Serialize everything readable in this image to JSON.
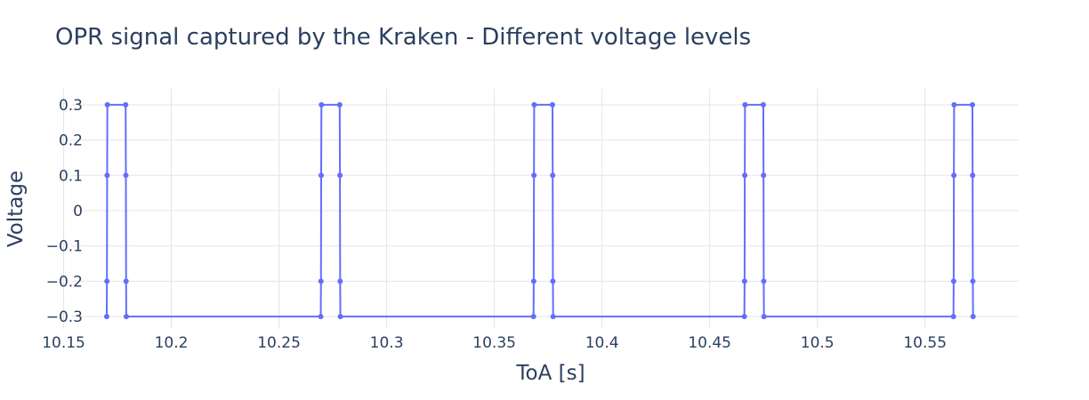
{
  "colors": {
    "series": "#636efa",
    "grid": "#e5e5e5",
    "text": "#2a3f5f"
  },
  "chart_data": {
    "type": "line",
    "mode": "lines+markers",
    "title": "OPR signal captured by the Kraken - Different voltage levels",
    "xlabel": "ToA [s]",
    "ylabel": "Voltage",
    "xlim": [
      10.1535,
      10.5935
    ],
    "ylim": [
      -0.335,
      0.345
    ],
    "grid": true,
    "x_ticks": [
      {
        "value": 10.15,
        "label": "10.15"
      },
      {
        "value": 10.2,
        "label": "10.2"
      },
      {
        "value": 10.25,
        "label": "10.25"
      },
      {
        "value": 10.3,
        "label": "10.3"
      },
      {
        "value": 10.35,
        "label": "10.35"
      },
      {
        "value": 10.4,
        "label": "10.4"
      },
      {
        "value": 10.45,
        "label": "10.45"
      },
      {
        "value": 10.5,
        "label": "10.5"
      },
      {
        "value": 10.55,
        "label": "10.55"
      }
    ],
    "y_ticks": [
      {
        "value": 0.3,
        "label": "0.3"
      },
      {
        "value": 0.2,
        "label": "0.2"
      },
      {
        "value": 0.1,
        "label": "0.1"
      },
      {
        "value": 0,
        "label": "0"
      },
      {
        "value": -0.1,
        "label": "−0.1"
      },
      {
        "value": -0.2,
        "label": "−0.2"
      },
      {
        "value": -0.3,
        "label": "−0.3"
      }
    ],
    "series": [
      {
        "points": [
          [
            10.17,
            -0.3
          ],
          [
            10.1701,
            -0.2
          ],
          [
            10.1702,
            0.1
          ],
          [
            10.1703,
            0.3
          ],
          [
            10.1788,
            0.3
          ],
          [
            10.1789,
            0.1
          ],
          [
            10.179,
            -0.2
          ],
          [
            10.1791,
            -0.3
          ],
          [
            10.2694,
            -0.3
          ],
          [
            10.2695,
            -0.2
          ],
          [
            10.2696,
            0.1
          ],
          [
            10.2697,
            0.3
          ],
          [
            10.2782,
            0.3
          ],
          [
            10.2783,
            0.1
          ],
          [
            10.2784,
            -0.2
          ],
          [
            10.2785,
            -0.3
          ],
          [
            10.3682,
            -0.3
          ],
          [
            10.3683,
            -0.2
          ],
          [
            10.3684,
            0.1
          ],
          [
            10.3685,
            0.3
          ],
          [
            10.377,
            0.3
          ],
          [
            10.3771,
            0.1
          ],
          [
            10.3772,
            -0.2
          ],
          [
            10.3773,
            -0.3
          ],
          [
            10.4661,
            -0.3
          ],
          [
            10.4662,
            -0.2
          ],
          [
            10.4663,
            0.1
          ],
          [
            10.4664,
            0.3
          ],
          [
            10.4749,
            0.3
          ],
          [
            10.475,
            0.1
          ],
          [
            10.4751,
            -0.2
          ],
          [
            10.4752,
            -0.3
          ],
          [
            10.5632,
            -0.3
          ],
          [
            10.5633,
            -0.2
          ],
          [
            10.5634,
            0.1
          ],
          [
            10.5635,
            0.3
          ],
          [
            10.572,
            0.3
          ],
          [
            10.5721,
            0.1
          ],
          [
            10.5722,
            -0.2
          ],
          [
            10.5723,
            -0.3
          ]
        ]
      }
    ]
  }
}
